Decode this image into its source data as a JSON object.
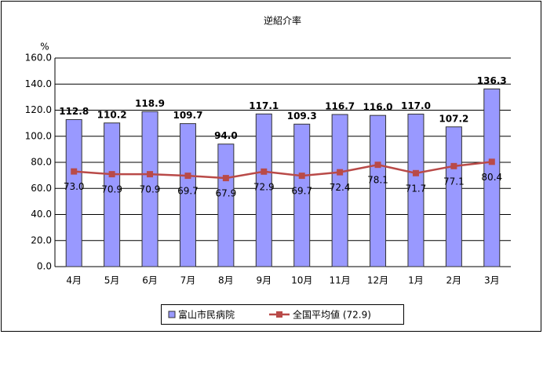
{
  "chart_data": {
    "type": "bar",
    "title": "逆紹介率",
    "y_unit": "%",
    "categories": [
      "4月",
      "5月",
      "6月",
      "7月",
      "8月",
      "9月",
      "10月",
      "11月",
      "12月",
      "1月",
      "2月",
      "3月"
    ],
    "series": [
      {
        "name": "富山市民病院",
        "type": "bar",
        "color": "#9999ff",
        "values": [
          112.8,
          110.2,
          118.9,
          109.7,
          94.0,
          117.1,
          109.3,
          116.7,
          116.0,
          117.0,
          107.2,
          136.3
        ],
        "value_labels": [
          "112.8",
          "110.2",
          "118.9",
          "109.7",
          "94.0",
          "117.1",
          "109.3",
          "116.7",
          "116.0",
          "117.0",
          "107.2",
          "136.3"
        ]
      },
      {
        "name": "全国平均値 (72.9)",
        "type": "line",
        "color": "#b94a48",
        "values": [
          73.0,
          70.9,
          70.9,
          69.7,
          67.9,
          72.9,
          69.7,
          72.4,
          78.1,
          71.7,
          77.1,
          80.4
        ],
        "value_labels": [
          "73.0",
          "70.9",
          "70.9",
          "69.7",
          "67.9",
          "72.9",
          "69.7",
          "72.4",
          "78.1",
          "71.7",
          "77.1",
          "80.4"
        ]
      }
    ],
    "ylim": [
      0,
      160
    ],
    "yticks": [
      {
        "value": 0,
        "label": "0.0"
      },
      {
        "value": 20,
        "label": "20.0"
      },
      {
        "value": 40,
        "label": "40.0"
      },
      {
        "value": 60,
        "label": "60.0"
      },
      {
        "value": 80,
        "label": "80.0"
      },
      {
        "value": 100,
        "label": "100.0"
      },
      {
        "value": 120,
        "label": "120.0"
      },
      {
        "value": 140,
        "label": "140.0"
      },
      {
        "value": 160,
        "label": "160.0"
      }
    ],
    "grid": true,
    "legend": "bottom"
  }
}
